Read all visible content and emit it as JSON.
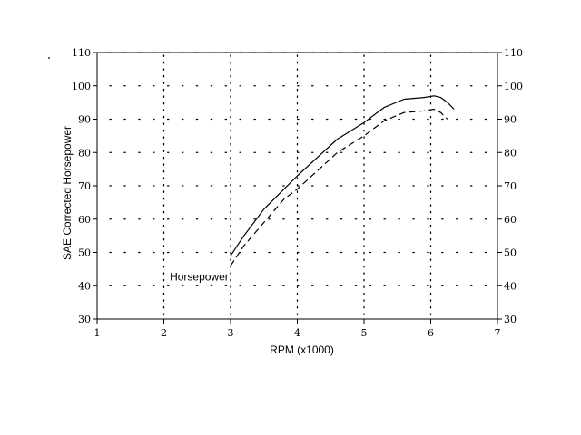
{
  "chart_data": {
    "type": "line",
    "xlabel": "RPM (x1000)",
    "ylabel": "SAE Corrected Horsepower",
    "xlim": [
      1,
      7
    ],
    "ylim": [
      30,
      110
    ],
    "x_ticks": [
      1,
      2,
      3,
      4,
      5,
      6,
      7
    ],
    "y_ticks": [
      30,
      40,
      50,
      60,
      70,
      80,
      90,
      100,
      110
    ],
    "x_tick_labels": [
      "1",
      "2",
      "3",
      "4",
      "5",
      "6",
      "7"
    ],
    "y_tick_labels": [
      "30",
      "40",
      "50",
      "60",
      "70",
      "80",
      "90",
      "100",
      "110"
    ],
    "grid": "dotted",
    "right_axis_mirrored": true,
    "series": [
      {
        "style": "solid",
        "x": [
          3.0,
          3.2,
          3.5,
          3.8,
          4.0,
          4.3,
          4.6,
          5.0,
          5.3,
          5.6,
          5.9,
          6.05,
          6.15,
          6.25,
          6.35
        ],
        "y": [
          49,
          55,
          63,
          69,
          73,
          78.5,
          84,
          89,
          93.5,
          96,
          96.5,
          97,
          96.5,
          95,
          93
        ]
      },
      {
        "style": "dashed",
        "x": [
          3.0,
          3.2,
          3.5,
          3.8,
          4.0,
          4.3,
          4.6,
          5.0,
          5.3,
          5.6,
          5.9,
          6.05,
          6.15,
          6.25
        ],
        "y": [
          46,
          52,
          59,
          66,
          69,
          74.5,
          80,
          85,
          89.5,
          92,
          92.5,
          93,
          92,
          90
        ]
      }
    ],
    "annotations": [
      {
        "text": "Horsepower",
        "x": 2.97,
        "y": 41.5,
        "anchor": "end"
      }
    ]
  }
}
